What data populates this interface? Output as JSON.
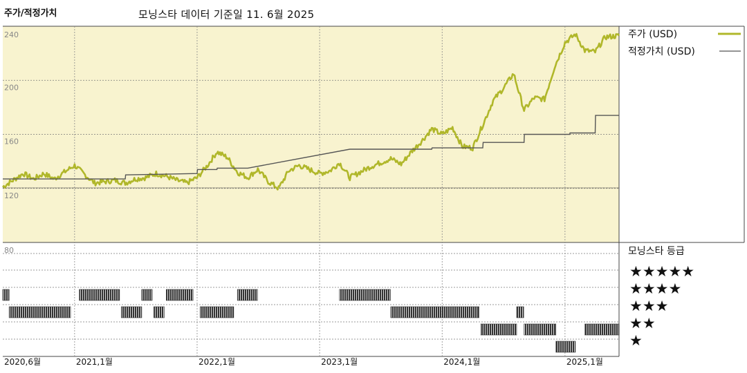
{
  "header": {
    "title": "주가/적정가치",
    "subtitle": "모닝스타 데이터 기준일 11. 6월 2025"
  },
  "colors": {
    "panel_bg": "#f8f3cf",
    "price": "#b0b72a",
    "fair": "#555555",
    "bars": "#333333"
  },
  "chart_data": {
    "type": "line",
    "title": "주가/적정가치",
    "subtitle": "모닝스타 데이터 기준일 11. 6월 2025",
    "x_range": [
      "2020-06-01",
      "2025-06-11"
    ],
    "ylim": [
      80,
      240
    ],
    "yticks": [
      80,
      120,
      160,
      200,
      240
    ],
    "xticks": [
      {
        "date": "2020-06-01",
        "label": "2020,6월"
      },
      {
        "date": "2021-01-01",
        "label": "2021,1월"
      },
      {
        "date": "2022-01-01",
        "label": "2022,1월"
      },
      {
        "date": "2023-01-01",
        "label": "2023,1월"
      },
      {
        "date": "2024-01-01",
        "label": "2024,1월"
      },
      {
        "date": "2025-01-01",
        "label": "2025,1월"
      }
    ],
    "grid": true,
    "legend_position": "right",
    "series": [
      {
        "name": "주가 (USD)",
        "color": "#b0b72a",
        "points": [
          [
            "2020-06-01",
            121
          ],
          [
            "2020-07-01",
            126
          ],
          [
            "2020-08-01",
            131
          ],
          [
            "2020-09-01",
            127
          ],
          [
            "2020-10-01",
            131
          ],
          [
            "2020-11-01",
            127
          ],
          [
            "2020-12-01",
            132
          ],
          [
            "2021-01-01",
            137
          ],
          [
            "2021-02-01",
            130
          ],
          [
            "2021-03-01",
            124
          ],
          [
            "2021-04-01",
            125
          ],
          [
            "2021-05-01",
            126
          ],
          [
            "2021-06-01",
            124
          ],
          [
            "2021-07-01",
            127
          ],
          [
            "2021-08-01",
            128
          ],
          [
            "2021-09-01",
            131
          ],
          [
            "2021-10-01",
            129
          ],
          [
            "2021-11-01",
            126
          ],
          [
            "2021-12-01",
            124
          ],
          [
            "2022-01-01",
            128
          ],
          [
            "2022-02-01",
            137
          ],
          [
            "2022-03-01",
            147
          ],
          [
            "2022-04-01",
            143
          ],
          [
            "2022-05-01",
            132
          ],
          [
            "2022-06-01",
            128
          ],
          [
            "2022-07-01",
            134
          ],
          [
            "2022-08-01",
            125
          ],
          [
            "2022-09-01",
            120
          ],
          [
            "2022-10-01",
            133
          ],
          [
            "2022-11-01",
            137
          ],
          [
            "2022-12-01",
            134
          ],
          [
            "2023-01-01",
            131
          ],
          [
            "2023-02-01",
            133
          ],
          [
            "2023-03-01",
            139
          ],
          [
            "2023-04-01",
            128
          ],
          [
            "2023-05-01",
            132
          ],
          [
            "2023-06-01",
            136
          ],
          [
            "2023-07-01",
            139
          ],
          [
            "2023-08-01",
            142
          ],
          [
            "2023-09-01",
            138
          ],
          [
            "2023-10-01",
            147
          ],
          [
            "2023-11-01",
            155
          ],
          [
            "2023-12-01",
            164
          ],
          [
            "2024-01-01",
            160
          ],
          [
            "2024-02-01",
            165
          ],
          [
            "2024-03-01",
            151
          ],
          [
            "2024-04-01",
            150
          ],
          [
            "2024-05-01",
            167
          ],
          [
            "2024-06-01",
            185
          ],
          [
            "2024-07-01",
            194
          ],
          [
            "2024-08-01",
            205
          ],
          [
            "2024-09-01",
            178
          ],
          [
            "2024-10-01",
            187
          ],
          [
            "2024-11-01",
            186
          ],
          [
            "2024-12-01",
            210
          ],
          [
            "2025-01-01",
            228
          ],
          [
            "2025-02-01",
            234
          ],
          [
            "2025-03-01",
            222
          ],
          [
            "2025-04-01",
            221
          ],
          [
            "2025-05-01",
            232
          ],
          [
            "2025-06-11",
            233
          ]
        ]
      },
      {
        "name": "적정가치 (USD)",
        "color": "#555555",
        "step": true,
        "points": [
          [
            "2020-06-01",
            127
          ],
          [
            "2021-06-01",
            127
          ],
          [
            "2021-06-02",
            130
          ],
          [
            "2022-01-01",
            131
          ],
          [
            "2022-01-02",
            134
          ],
          [
            "2022-03-01",
            134
          ],
          [
            "2022-03-02",
            135
          ],
          [
            "2022-06-01",
            135
          ],
          [
            "2023-04-01",
            149
          ],
          [
            "2023-12-01",
            149
          ],
          [
            "2023-12-02",
            150
          ],
          [
            "2024-04-01",
            150
          ],
          [
            "2024-05-01",
            150
          ],
          [
            "2024-05-02",
            154
          ],
          [
            "2024-09-01",
            154
          ],
          [
            "2024-09-02",
            160
          ],
          [
            "2025-01-15",
            160
          ],
          [
            "2025-01-16",
            161
          ],
          [
            "2025-04-01",
            161
          ],
          [
            "2025-04-02",
            174
          ],
          [
            "2025-06-11",
            174
          ]
        ]
      }
    ],
    "reference_line": {
      "value": 120
    },
    "rating_panel": {
      "title": "모닝스타 등급",
      "star_labels": [
        "★★★★★",
        "★★★★",
        "★★★",
        "★★",
        "★"
      ],
      "periods": [
        {
          "stars": 4,
          "from": "2020-06-01",
          "to": "2020-06-20"
        },
        {
          "stars": 3,
          "from": "2020-06-20",
          "to": "2020-12-20"
        },
        {
          "stars": 4,
          "from": "2021-01-15",
          "to": "2021-05-15"
        },
        {
          "stars": 3,
          "from": "2021-05-20",
          "to": "2021-07-20"
        },
        {
          "stars": 4,
          "from": "2021-07-20",
          "to": "2021-08-20"
        },
        {
          "stars": 3,
          "from": "2021-08-25",
          "to": "2021-09-25"
        },
        {
          "stars": 4,
          "from": "2021-10-01",
          "to": "2021-12-20"
        },
        {
          "stars": 3,
          "from": "2022-01-10",
          "to": "2022-04-20"
        },
        {
          "stars": 4,
          "from": "2022-05-01",
          "to": "2022-06-30"
        },
        {
          "stars": 4,
          "from": "2023-03-01",
          "to": "2023-07-31"
        },
        {
          "stars": 3,
          "from": "2023-08-01",
          "to": "2024-04-20"
        },
        {
          "stars": 2,
          "from": "2024-04-25",
          "to": "2024-08-10"
        },
        {
          "stars": 3,
          "from": "2024-08-10",
          "to": "2024-08-31"
        },
        {
          "stars": 2,
          "from": "2024-09-01",
          "to": "2024-12-05"
        },
        {
          "stars": 1,
          "from": "2024-12-05",
          "to": "2025-02-01"
        },
        {
          "stars": 2,
          "from": "2025-03-01",
          "to": "2025-06-11"
        }
      ]
    }
  }
}
